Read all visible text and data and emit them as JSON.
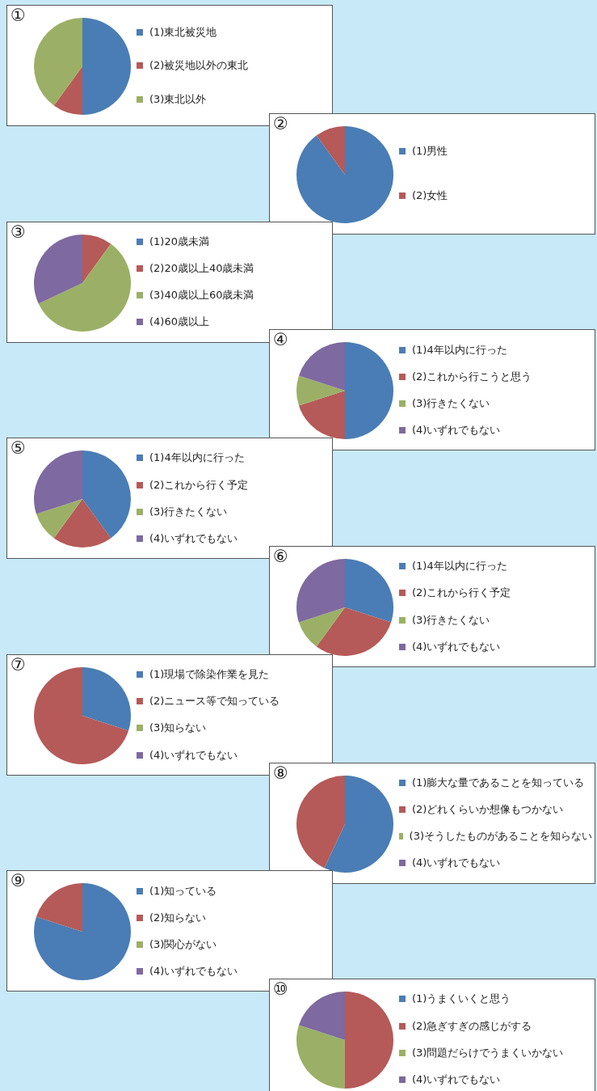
{
  "chart_data": [
    {
      "type": "pie",
      "title": "①",
      "categories": [
        "(1)東北被災地",
        "(2)被災地以外の東北",
        "(3)東北以外"
      ],
      "values": [
        50,
        10,
        40
      ],
      "colors": [
        "#4a7db5",
        "#b55a58",
        "#9bb066"
      ],
      "legend": "right"
    },
    {
      "type": "pie",
      "title": "②",
      "categories": [
        "(1)男性",
        "(2)女性"
      ],
      "values": [
        90,
        10
      ],
      "colors": [
        "#4a7db5",
        "#b55a58"
      ],
      "legend": "right"
    },
    {
      "type": "pie",
      "title": "③",
      "categories": [
        "(1)20歳未満",
        "(2)20歳以上40歳未満",
        "(3)40歳以上60歳未満",
        "(4)60歳以上"
      ],
      "values": [
        0,
        10,
        58,
        32
      ],
      "colors": [
        "#4a7db5",
        "#b55a58",
        "#9bb066",
        "#7e69a0"
      ],
      "legend": "right"
    },
    {
      "type": "pie",
      "title": "④",
      "categories": [
        "(1)4年以内に行った",
        "(2)これから行こうと思う",
        "(3)行きたくない",
        "(4)いずれでもない"
      ],
      "values": [
        50,
        20,
        10,
        20
      ],
      "colors": [
        "#4a7db5",
        "#b55a58",
        "#9bb066",
        "#7e69a0"
      ],
      "legend": "right"
    },
    {
      "type": "pie",
      "title": "⑤",
      "categories": [
        "(1)4年以内に行った",
        "(2)これから行く予定",
        "(3)行きたくない",
        "(4)いずれでもない"
      ],
      "values": [
        40,
        20,
        10,
        30
      ],
      "colors": [
        "#4a7db5",
        "#b55a58",
        "#9bb066",
        "#7e69a0"
      ],
      "legend": "right"
    },
    {
      "type": "pie",
      "title": "⑥",
      "categories": [
        "(1)4年以内に行った",
        "(2)これから行く予定",
        "(3)行きたくない",
        "(4)いずれでもない"
      ],
      "values": [
        30,
        30,
        10,
        30
      ],
      "colors": [
        "#4a7db5",
        "#b55a58",
        "#9bb066",
        "#7e69a0"
      ],
      "legend": "right"
    },
    {
      "type": "pie",
      "title": "⑦",
      "categories": [
        "(1)現場で除染作業を見た",
        "(2)ニュース等で知っている",
        "(3)知らない",
        "(4)いずれでもない"
      ],
      "values": [
        30,
        70,
        0,
        0
      ],
      "colors": [
        "#4a7db5",
        "#b55a58",
        "#9bb066",
        "#7e69a0"
      ],
      "legend": "right"
    },
    {
      "type": "pie",
      "title": "⑧",
      "categories": [
        "(1)膨大な量であることを知っている",
        "(2)どれくらいか想像もつかない",
        "(3)そうしたものがあることを知らない",
        "(4)いずれでもない"
      ],
      "values": [
        57,
        43,
        0,
        0
      ],
      "colors": [
        "#4a7db5",
        "#b55a58",
        "#9bb066",
        "#7e69a0"
      ],
      "legend": "right"
    },
    {
      "type": "pie",
      "title": "⑨",
      "categories": [
        "(1)知っている",
        "(2)知らない",
        "(3)関心がない",
        "(4)いずれでもない"
      ],
      "values": [
        80,
        20,
        0,
        0
      ],
      "colors": [
        "#4a7db5",
        "#b55a58",
        "#9bb066",
        "#7e69a0"
      ],
      "legend": "right"
    },
    {
      "type": "pie",
      "title": "⑩",
      "categories": [
        "(1)うまくいくと思う",
        "(2)急ぎすぎの感じがする",
        "(3)問題だらけでうまくいかない",
        "(4)いずれでもない"
      ],
      "values": [
        0,
        50,
        30,
        20
      ],
      "colors": [
        "#4a7db5",
        "#b55a58",
        "#9bb066",
        "#7e69a0"
      ],
      "legend": "right"
    }
  ]
}
